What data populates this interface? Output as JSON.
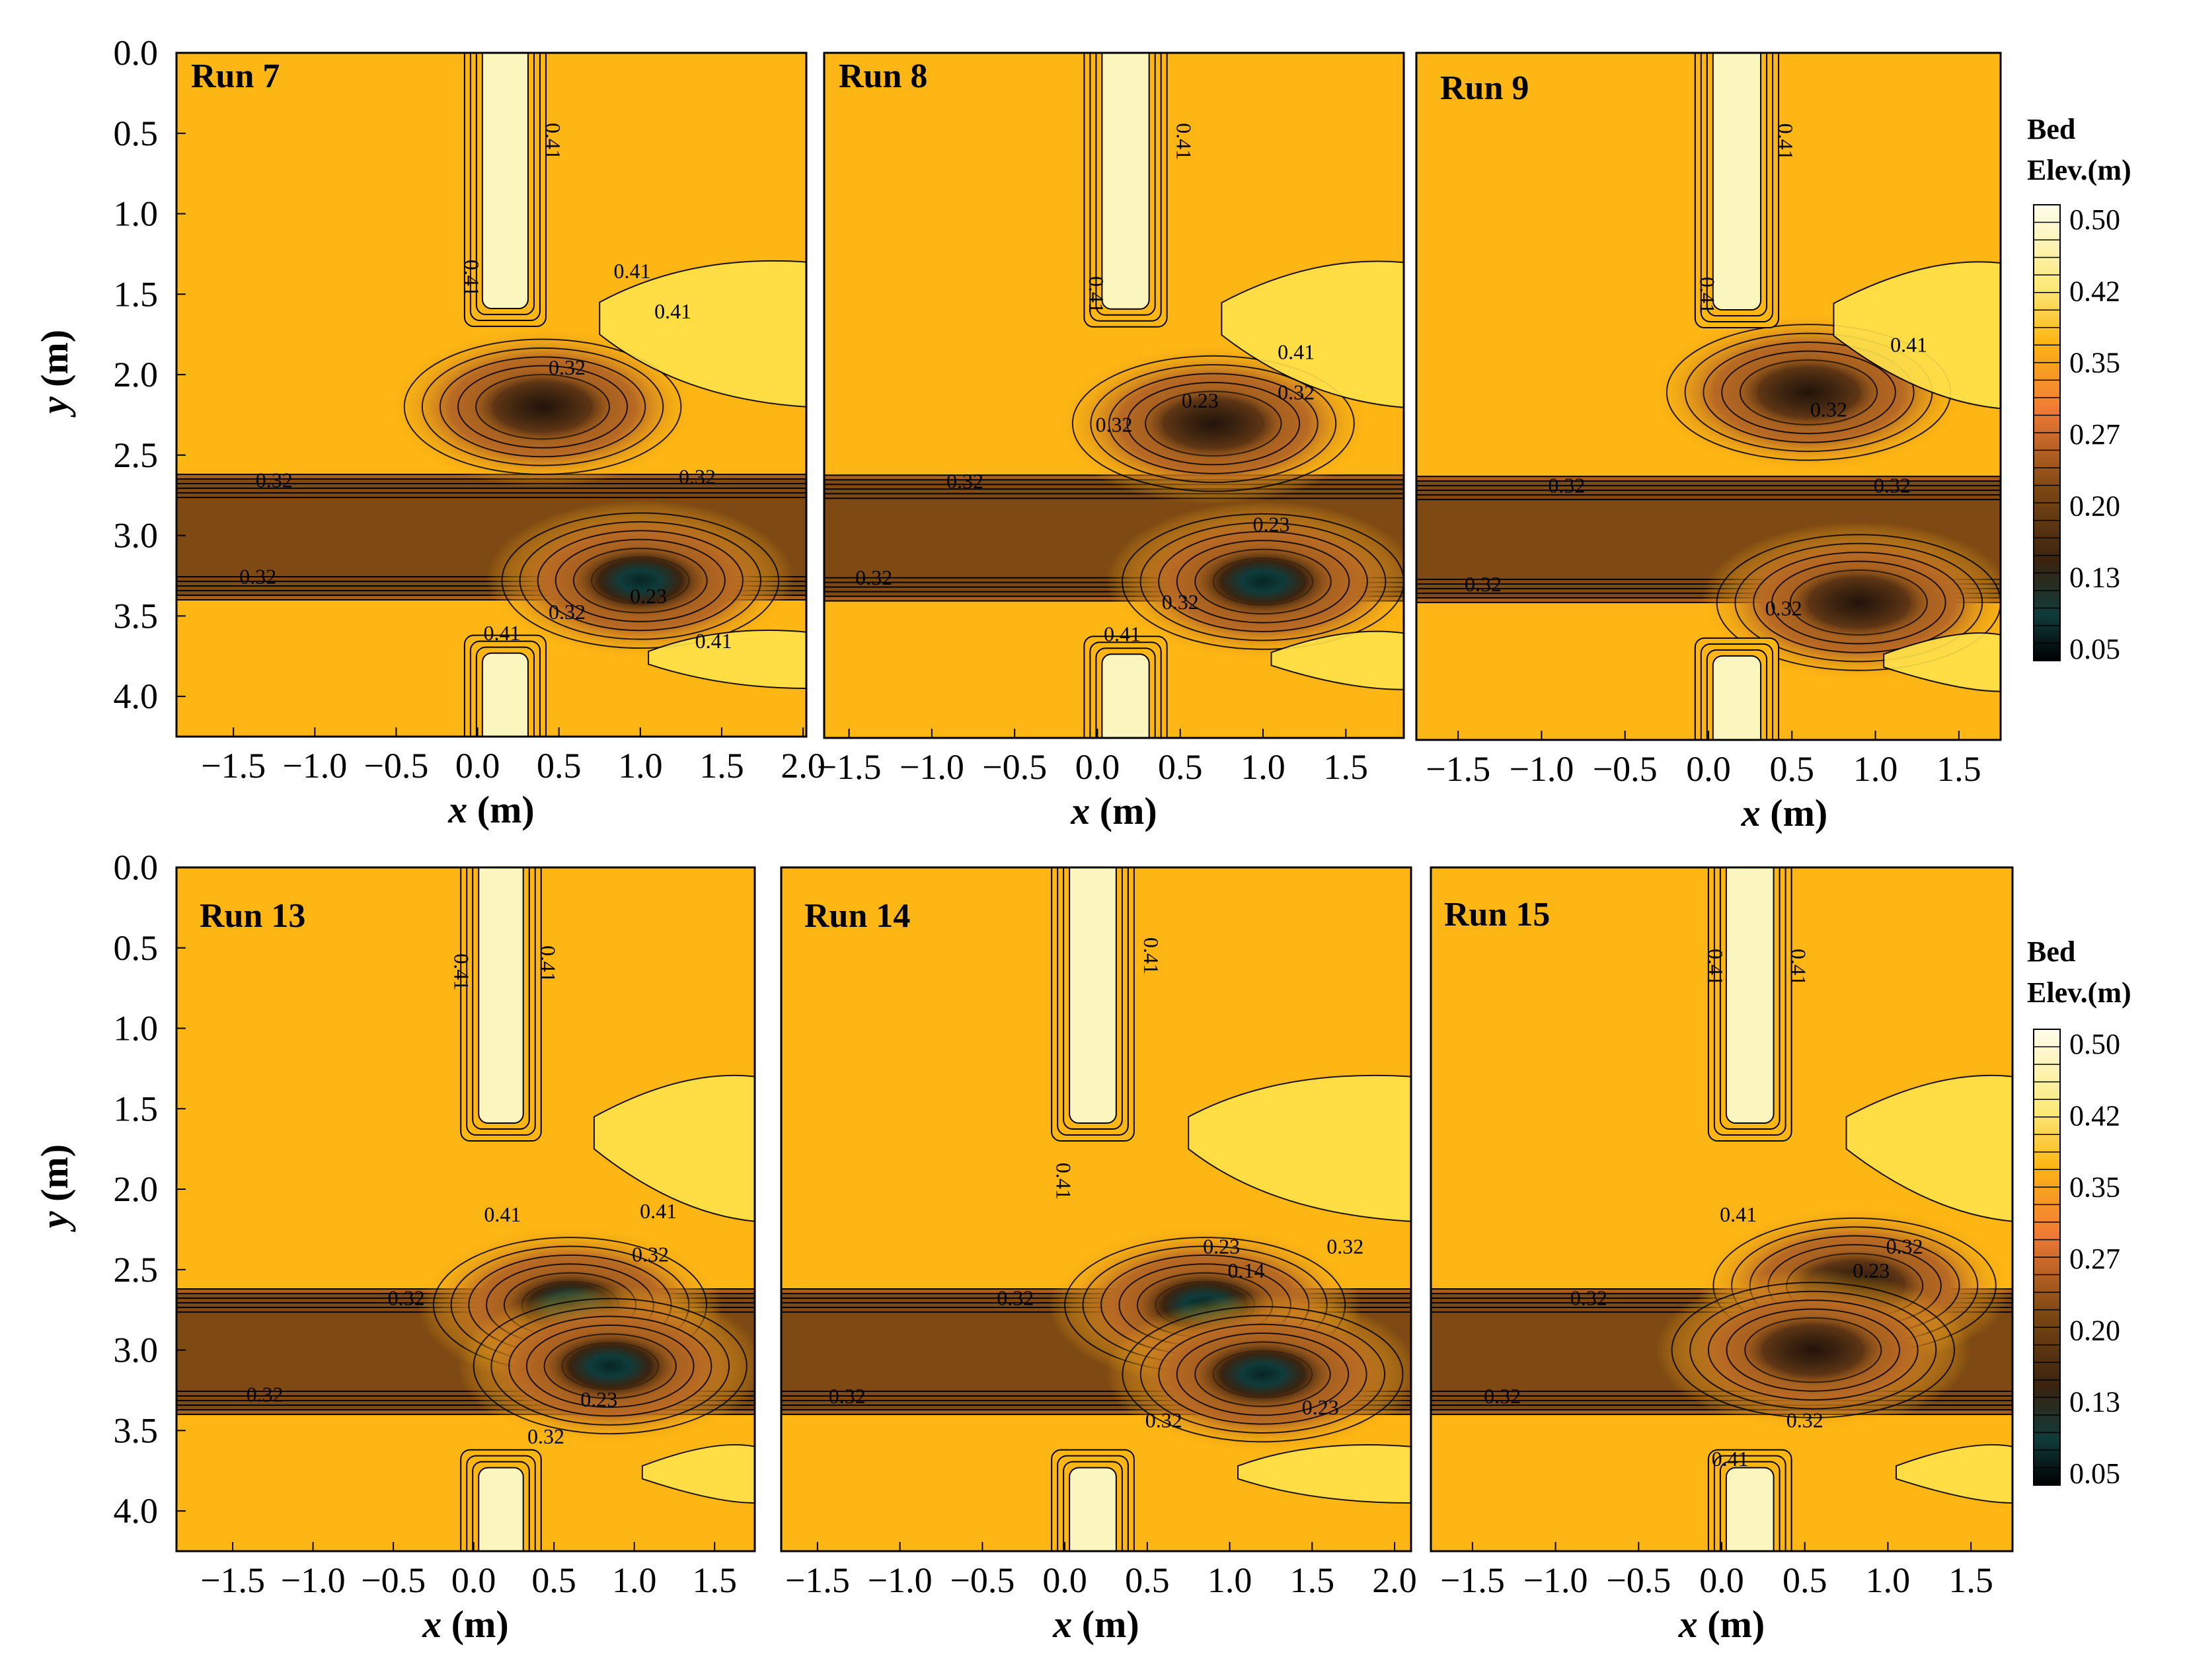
{
  "figure": {
    "background": "#ffffff",
    "palette": {
      "base": "#FDB613",
      "wall": "#FAF6BE",
      "channel": "#7E4913",
      "shoal": "#FFE24B",
      "scour_mid": "#3B230F",
      "scour_deep": "#0F3B3A"
    }
  },
  "colorbars": [
    {
      "title_line1": "Bed",
      "title_line2": "Elev.(m)",
      "ticks": [
        "0.50",
        "0.42",
        "0.35",
        "0.27",
        "0.20",
        "0.13",
        "0.05"
      ]
    },
    {
      "title_line1": "Bed",
      "title_line2": "Elev.(m)",
      "ticks": [
        "0.50",
        "0.42",
        "0.35",
        "0.27",
        "0.20",
        "0.13",
        "0.05"
      ]
    }
  ],
  "chart_data": [
    {
      "type": "heatmap",
      "subtype": "contour",
      "title": "Run 7",
      "xlabel": "x (m)",
      "ylabel": "y (m)",
      "xlim": [
        -1.85,
        2.02
      ],
      "ylim": [
        4.25,
        0.0
      ],
      "xticks": [
        "-1.5",
        "-1.0",
        "-0.5",
        "0.0",
        "0.5",
        "1.0",
        "1.5",
        "2.0"
      ],
      "yticks": [
        "0.0",
        "0.5",
        "1.0",
        "1.5",
        "2.0",
        "2.5",
        "3.0",
        "3.5",
        "4.0"
      ],
      "colorbar": {
        "label": "Bed Elev.(m)",
        "range": [
          0.05,
          0.5
        ]
      },
      "contour_labels": [
        {
          "text": "0.41",
          "x": 0.42,
          "y": 0.55,
          "rot": 90
        },
        {
          "text": "0.41",
          "x": -0.08,
          "y": 1.4,
          "rot": 90
        },
        {
          "text": "0.41",
          "x": 0.95,
          "y": 1.4,
          "rot": 0
        },
        {
          "text": "0.41",
          "x": 1.2,
          "y": 1.65,
          "rot": 0
        },
        {
          "text": "0.32",
          "x": 0.55,
          "y": 2.0,
          "rot": 0
        },
        {
          "text": "0.32",
          "x": -1.25,
          "y": 2.7,
          "rot": 0
        },
        {
          "text": "0.32",
          "x": 1.35,
          "y": 2.68,
          "rot": 0
        },
        {
          "text": "0.32",
          "x": -1.35,
          "y": 3.3,
          "rot": 0
        },
        {
          "text": "0.23",
          "x": 1.05,
          "y": 3.42,
          "rot": 0
        },
        {
          "text": "0.32",
          "x": 0.55,
          "y": 3.52,
          "rot": 0
        },
        {
          "text": "0.41",
          "x": 0.15,
          "y": 3.65,
          "rot": 0
        },
        {
          "text": "0.41",
          "x": 1.45,
          "y": 3.7,
          "rot": 0
        }
      ],
      "scour_holes": [
        {
          "x": 0.4,
          "y": 2.2,
          "min_depth_class": "mid"
        },
        {
          "x": 1.0,
          "y": 3.28,
          "min_depth_class": "deep"
        }
      ]
    },
    {
      "type": "heatmap",
      "subtype": "contour",
      "title": "Run 8",
      "xlabel": "x (m)",
      "ylabel": "",
      "xlim": [
        -1.65,
        1.85
      ],
      "ylim": [
        4.25,
        0.0
      ],
      "xticks": [
        "-1.5",
        "-1.0",
        "-0.5",
        "0.0",
        "0.5",
        "1.0",
        "1.5"
      ],
      "yticks": [],
      "colorbar": {
        "label": "Bed Elev.(m)",
        "range": [
          0.05,
          0.5
        ]
      },
      "contour_labels": [
        {
          "text": "0.41",
          "x": 0.48,
          "y": 0.55,
          "rot": 90
        },
        {
          "text": "0.41",
          "x": -0.05,
          "y": 1.5,
          "rot": 90
        },
        {
          "text": "0.41",
          "x": 1.2,
          "y": 1.9,
          "rot": 0
        },
        {
          "text": "0.23",
          "x": 0.62,
          "y": 2.2,
          "rot": 0
        },
        {
          "text": "0.32",
          "x": 1.2,
          "y": 2.15,
          "rot": 0
        },
        {
          "text": "0.32",
          "x": 0.1,
          "y": 2.35,
          "rot": 0
        },
        {
          "text": "0.32",
          "x": -0.8,
          "y": 2.7,
          "rot": 0
        },
        {
          "text": "0.23",
          "x": 1.05,
          "y": 2.97,
          "rot": 0
        },
        {
          "text": "0.32",
          "x": -1.35,
          "y": 3.3,
          "rot": 0
        },
        {
          "text": "0.32",
          "x": 0.5,
          "y": 3.45,
          "rot": 0
        },
        {
          "text": "0.41",
          "x": 0.15,
          "y": 3.65,
          "rot": 0
        }
      ],
      "scour_holes": [
        {
          "x": 0.7,
          "y": 2.3,
          "min_depth_class": "mid"
        },
        {
          "x": 1.0,
          "y": 3.28,
          "min_depth_class": "deep"
        }
      ]
    },
    {
      "type": "heatmap",
      "subtype": "contour",
      "title": "Run 9",
      "xlabel": "x (m)",
      "ylabel": "",
      "xlim": [
        -1.75,
        1.75
      ],
      "ylim": [
        4.25,
        0.0
      ],
      "xticks": [
        "-1.5",
        "-1.0",
        "-0.5",
        "0.0",
        "0.5",
        "1.0",
        "1.5"
      ],
      "yticks": [],
      "colorbar": {
        "label": "Bed Elev.(m)",
        "range": [
          0.05,
          0.5
        ]
      },
      "contour_labels": [
        {
          "text": "0.41",
          "x": 0.42,
          "y": 0.55,
          "rot": 90
        },
        {
          "text": "0.41",
          "x": -0.05,
          "y": 1.5,
          "rot": 90
        },
        {
          "text": "0.41",
          "x": 1.2,
          "y": 1.85,
          "rot": 0
        },
        {
          "text": "0.32",
          "x": 0.72,
          "y": 2.25,
          "rot": 0
        },
        {
          "text": "0.32",
          "x": -0.85,
          "y": 2.72,
          "rot": 0
        },
        {
          "text": "0.32",
          "x": 1.1,
          "y": 2.72,
          "rot": 0
        },
        {
          "text": "0.32",
          "x": -1.35,
          "y": 3.33,
          "rot": 0
        },
        {
          "text": "0.32",
          "x": 0.45,
          "y": 3.48,
          "rot": 0
        }
      ],
      "scour_holes": [
        {
          "x": 0.6,
          "y": 2.1,
          "min_depth_class": "mid"
        },
        {
          "x": 0.9,
          "y": 3.4,
          "min_depth_class": "mid"
        }
      ]
    },
    {
      "type": "heatmap",
      "subtype": "contour",
      "title": "Run 13",
      "xlabel": "x (m)",
      "ylabel": "y (m)",
      "xlim": [
        -1.85,
        1.75
      ],
      "ylim": [
        4.25,
        0.0
      ],
      "xticks": [
        "-1.5",
        "-1.0",
        "-0.5",
        "0.0",
        "0.5",
        "1.0",
        "1.5"
      ],
      "yticks": [
        "0.0",
        "0.5",
        "1.0",
        "1.5",
        "2.0",
        "2.5",
        "3.0",
        "3.5",
        "4.0"
      ],
      "colorbar": {
        "label": "Bed Elev.(m)",
        "range": [
          0.05,
          0.5
        ]
      },
      "contour_labels": [
        {
          "text": "0.41",
          "x": -0.12,
          "y": 0.65,
          "rot": 90
        },
        {
          "text": "0.41",
          "x": 0.42,
          "y": 0.6,
          "rot": 90
        },
        {
          "text": "0.41",
          "x": 0.18,
          "y": 2.2,
          "rot": 0
        },
        {
          "text": "0.41",
          "x": 1.15,
          "y": 2.18,
          "rot": 0
        },
        {
          "text": "0.32",
          "x": 1.1,
          "y": 2.45,
          "rot": 0
        },
        {
          "text": "0.32",
          "x": -0.42,
          "y": 2.72,
          "rot": 0
        },
        {
          "text": "0.32",
          "x": -1.3,
          "y": 3.32,
          "rot": 0
        },
        {
          "text": "0.23",
          "x": 0.78,
          "y": 3.35,
          "rot": 0
        },
        {
          "text": "0.32",
          "x": 0.45,
          "y": 3.58,
          "rot": 0
        }
      ],
      "scour_holes": [
        {
          "x": 0.6,
          "y": 2.72,
          "min_depth_class": "deep"
        },
        {
          "x": 0.85,
          "y": 3.1,
          "min_depth_class": "deep"
        }
      ]
    },
    {
      "type": "heatmap",
      "subtype": "contour",
      "title": "Run 14",
      "xlabel": "x (m)",
      "ylabel": "",
      "xlim": [
        -1.72,
        2.1
      ],
      "ylim": [
        4.25,
        0.0
      ],
      "xticks": [
        "-1.5",
        "-1.0",
        "-0.5",
        "0.0",
        "0.5",
        "1.0",
        "1.5",
        "2.0"
      ],
      "yticks": [],
      "colorbar": {
        "label": "Bed Elev.(m)",
        "range": [
          0.05,
          0.5
        ]
      },
      "contour_labels": [
        {
          "text": "0.41",
          "x": 0.48,
          "y": 0.55,
          "rot": 90
        },
        {
          "text": "0.41",
          "x": -0.05,
          "y": 1.95,
          "rot": 90
        },
        {
          "text": "0.23",
          "x": 0.95,
          "y": 2.4,
          "rot": 0
        },
        {
          "text": "0.32",
          "x": 1.7,
          "y": 2.4,
          "rot": 0
        },
        {
          "text": "0.14",
          "x": 1.1,
          "y": 2.55,
          "rot": 0
        },
        {
          "text": "0.32",
          "x": -0.3,
          "y": 2.72,
          "rot": 0
        },
        {
          "text": "0.32",
          "x": -1.32,
          "y": 3.33,
          "rot": 0
        },
        {
          "text": "0.23",
          "x": 1.55,
          "y": 3.4,
          "rot": 0
        },
        {
          "text": "0.32",
          "x": 0.6,
          "y": 3.48,
          "rot": 0
        }
      ],
      "scour_holes": [
        {
          "x": 0.85,
          "y": 2.72,
          "min_depth_class": "deep"
        },
        {
          "x": 1.2,
          "y": 3.15,
          "min_depth_class": "deep"
        }
      ]
    },
    {
      "type": "heatmap",
      "subtype": "contour",
      "title": "Run 15",
      "xlabel": "x (m)",
      "ylabel": "",
      "xlim": [
        -1.75,
        1.75
      ],
      "ylim": [
        4.25,
        0.0
      ],
      "xticks": [
        "-1.5",
        "-1.0",
        "-0.5",
        "0.0",
        "0.5",
        "1.0",
        "1.5"
      ],
      "yticks": [],
      "colorbar": {
        "label": "Bed Elev.(m)",
        "range": [
          0.05,
          0.5
        ]
      },
      "contour_labels": [
        {
          "text": "0.41",
          "x": -0.08,
          "y": 0.62,
          "rot": 90
        },
        {
          "text": "0.41",
          "x": 0.42,
          "y": 0.62,
          "rot": 90
        },
        {
          "text": "0.41",
          "x": 0.1,
          "y": 2.2,
          "rot": 0
        },
        {
          "text": "0.32",
          "x": 1.1,
          "y": 2.4,
          "rot": 0
        },
        {
          "text": "0.23",
          "x": 0.9,
          "y": 2.55,
          "rot": 0
        },
        {
          "text": "0.32",
          "x": -0.8,
          "y": 2.72,
          "rot": 0
        },
        {
          "text": "0.32",
          "x": -1.32,
          "y": 3.33,
          "rot": 0
        },
        {
          "text": "0.32",
          "x": 0.5,
          "y": 3.48,
          "rot": 0
        },
        {
          "text": "0.41",
          "x": 0.05,
          "y": 3.72,
          "rot": 0
        }
      ],
      "scour_holes": [
        {
          "x": 0.8,
          "y": 2.6,
          "min_depth_class": "mid"
        },
        {
          "x": 0.55,
          "y": 3.0,
          "min_depth_class": "mid"
        }
      ]
    }
  ]
}
